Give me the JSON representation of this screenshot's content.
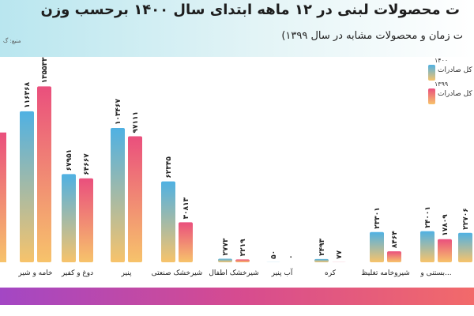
{
  "header": {
    "title": "ت محصولات لبنی در ۱۲ ماهه ابتدای سال ۱۴۰۰ برحسب وزن",
    "subtitle": "ت زمان و محصولات مشابه در سال ۱۳۹۹)",
    "source": "منبع: گ"
  },
  "legend": {
    "items": [
      {
        "year": "۱۴۰۰",
        "label": "کل صادرات",
        "color": "#4fb1e3"
      },
      {
        "year": "۱۳۹۹",
        "label": "کل صادرات",
        "color": "#ea4f7d"
      }
    ]
  },
  "colors": {
    "bar_1400_top": "#4fb1e3",
    "bar_1400_bottom": "#f7c36b",
    "bar_1399_top": "#ea4f7d",
    "bar_1399_bottom": "#f7c36b",
    "bottom_bar": "#c04aa8"
  },
  "chart_data": {
    "type": "bar",
    "categories": [
      "",
      "خامه و شیر",
      "دوغ و کفیر",
      "پنیر",
      "شیرخشک صنعتی",
      "شیرخشک اطفال",
      "آب پنیر",
      "کره",
      "شیروخامه تغلیظ",
      "بستنی و...",
      ""
    ],
    "series": [
      {
        "name": "۱۴۰۰",
        "values": [
          null,
          116368,
          67951,
          103467,
          62345,
          2773,
          50,
          2493,
          23301,
          24001,
          22706
        ]
      },
      {
        "name": "۱۳۹۹",
        "values": [
          null,
          135533,
          64667,
          97111,
          30813,
          2219,
          0,
          77,
          8464,
          17809,
          null
        ]
      }
    ],
    "value_labels": [
      [
        "",
        "۱۱۶۳۶۸",
        "۶۷۹۵۱",
        "۱۰۳۴۶۷",
        "۶۲۳۴۵",
        "۲۷۷۳",
        "۵۰",
        "۲۴۹۳",
        "۲۳۳۰۱",
        "۲۴۰۰۱",
        "۲۲۷۰۶"
      ],
      [
        "",
        "۱۳۵۵۳۳",
        "۶۴۶۶۷",
        "۹۷۱۱۱",
        "۳۰۸۱۳",
        "۲۲۱۹",
        "۰",
        "۷۷",
        "۸۴۶۴",
        "۱۷۸۰۹",
        ""
      ]
    ],
    "edge_bar_left": 100000,
    "ylim": [
      0,
      140000
    ]
  }
}
